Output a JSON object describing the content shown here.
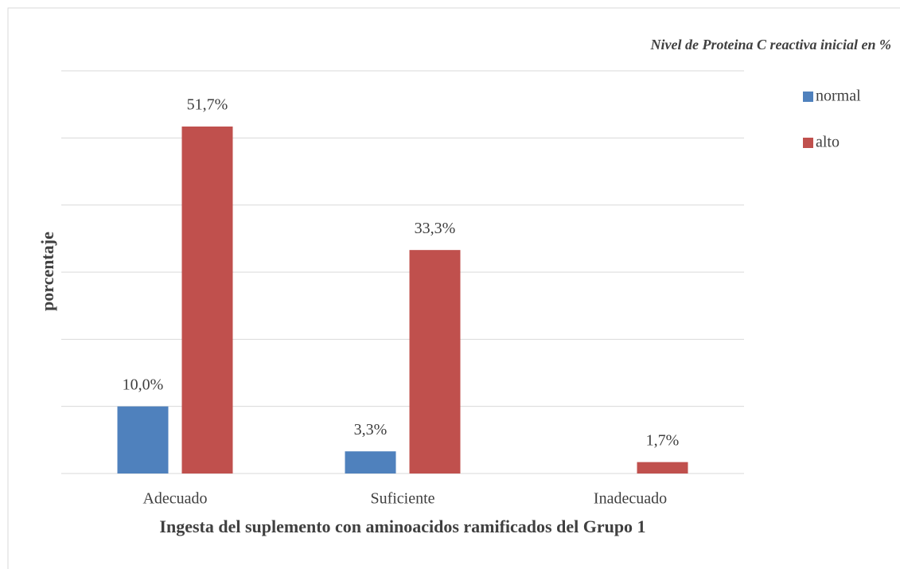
{
  "chart_data": {
    "type": "bar",
    "title": "Nivel de Proteina C reactiva inicial en %",
    "x_label": "Ingesta del suplemento con aminoacidos ramificados del Grupo 1",
    "y_label": "porcentaje",
    "categories": [
      "Adecuado",
      "Suficiente",
      "Inadecuado"
    ],
    "series": [
      {
        "name": "normal",
        "color": "#4f81bd",
        "values": [
          10.0,
          3.3,
          null
        ],
        "value_labels": [
          "10,0%",
          "3,3%",
          null
        ]
      },
      {
        "name": "alto",
        "color": "#c0504d",
        "values": [
          51.7,
          33.3,
          1.7
        ],
        "value_labels": [
          "51,7%",
          "33,3%",
          "1,7%"
        ]
      }
    ],
    "ylim": [
      0,
      60
    ],
    "yticks": [
      0,
      10,
      20,
      30,
      40,
      50,
      60
    ],
    "grid": true,
    "legend": "right"
  }
}
